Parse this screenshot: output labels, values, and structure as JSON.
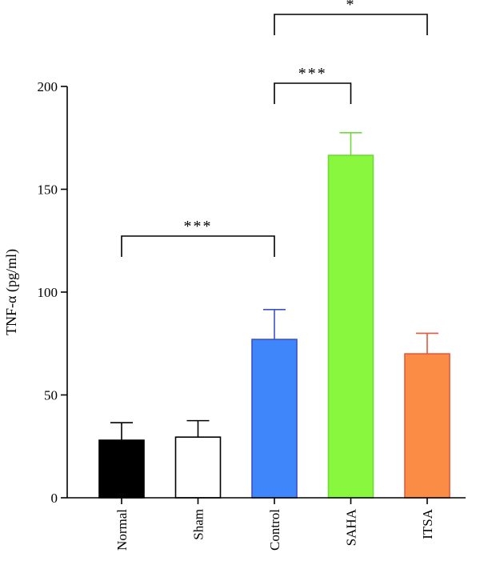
{
  "chart_data": {
    "type": "bar",
    "categories": [
      "Normal",
      "Sham",
      "Control",
      "SAHA",
      "ITSA"
    ],
    "values": [
      28,
      29.5,
      77,
      166.5,
      70
    ],
    "errors": [
      8.5,
      8,
      14.5,
      11,
      10
    ],
    "colors": [
      "#000000",
      "#ffffff",
      "#3f86fb",
      "#88f73e",
      "#fa8c46"
    ],
    "edge_colors": [
      "#000000",
      "#000000",
      "#3a52c4",
      "#6fd93a",
      "#e8573c"
    ],
    "ylabel": "TNF-α (pg/ml)",
    "ylim": [
      0,
      200
    ],
    "yticks": [
      0,
      50,
      100,
      150,
      200
    ],
    "significance": [
      {
        "from": "Normal",
        "to": "Control",
        "label": "***"
      },
      {
        "from": "Control",
        "to": "SAHA",
        "label": "***"
      },
      {
        "from": "Control",
        "to": "ITSA",
        "label": "*"
      }
    ]
  }
}
